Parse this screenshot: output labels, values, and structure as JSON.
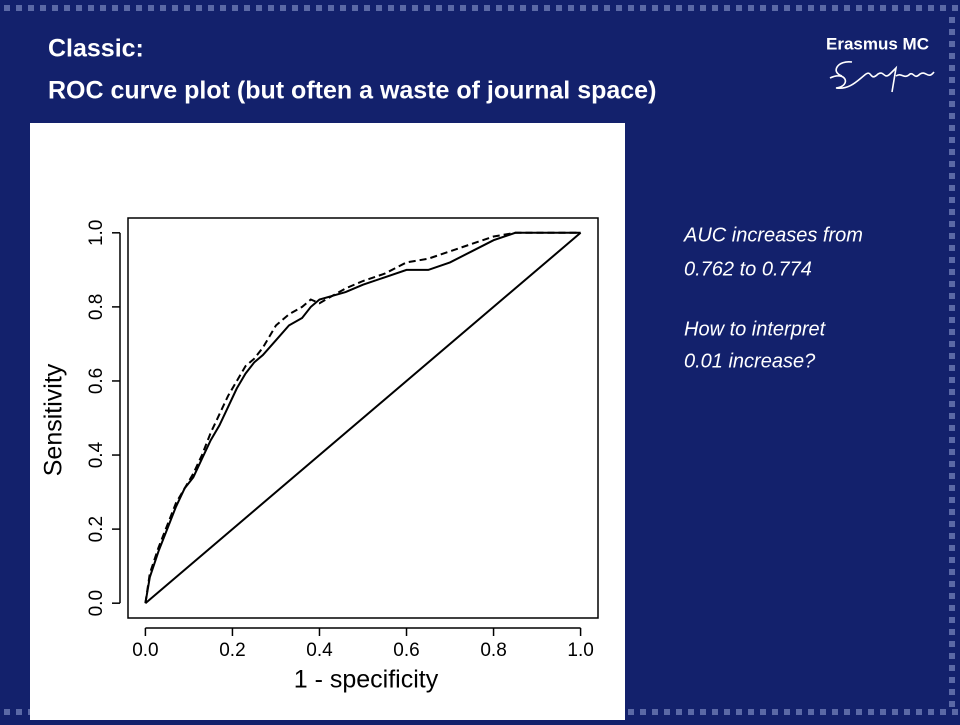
{
  "slide": {
    "title": [
      "Classic:",
      "ROC curve plot (but often a waste of journal space)"
    ],
    "logo": "Erasmus MC",
    "notes": [
      "AUC increases from",
      "0.762 to 0.774",
      "How to interpret",
      "0.01 increase?"
    ]
  },
  "chart_data": {
    "type": "line",
    "x_label": "1 - specificity",
    "y_label": "Sensitivity",
    "xlim": [
      -0.04,
      1.04
    ],
    "ylim": [
      -0.04,
      1.04
    ],
    "xticks": [
      {
        "value": 0,
        "label": "0.0"
      },
      0.2,
      0.4,
      0.6,
      0.8,
      {
        "value": 1,
        "label": "1.0"
      }
    ],
    "yticks": [
      {
        "value": 0,
        "label": "0.0"
      },
      0.2,
      0.4,
      0.6,
      0.8,
      {
        "value": 1,
        "label": "1.0"
      }
    ],
    "series": [
      {
        "color": "#000000",
        "dashed": false,
        "x": [
          0,
          0.01,
          0.03,
          0.05,
          0.07,
          0.09,
          0.11,
          0.13,
          0.15,
          0.17,
          0.19,
          0.21,
          0.23,
          0.25,
          0.27,
          0.3,
          0.33,
          0.36,
          0.38,
          0.4,
          0.43,
          0.46,
          0.5,
          0.55,
          0.6,
          0.65,
          0.7,
          0.75,
          0.8,
          0.85,
          0.9,
          1
        ],
        "y": [
          0,
          0.07,
          0.14,
          0.2,
          0.26,
          0.31,
          0.34,
          0.39,
          0.44,
          0.48,
          0.53,
          0.58,
          0.62,
          0.65,
          0.67,
          0.71,
          0.75,
          0.77,
          0.8,
          0.82,
          0.83,
          0.84,
          0.86,
          0.88,
          0.9,
          0.9,
          0.92,
          0.95,
          0.98,
          1,
          1,
          1
        ]
      },
      {
        "color": "#000000",
        "dashed": true,
        "x": [
          0,
          0.01,
          0.03,
          0.05,
          0.07,
          0.09,
          0.11,
          0.13,
          0.15,
          0.17,
          0.19,
          0.21,
          0.23,
          0.25,
          0.27,
          0.3,
          0.33,
          0.36,
          0.38,
          0.4,
          0.43,
          0.46,
          0.5,
          0.55,
          0.6,
          0.65,
          0.7,
          0.75,
          0.8,
          0.85,
          0.9,
          1
        ],
        "y": [
          0,
          0.08,
          0.15,
          0.21,
          0.27,
          0.31,
          0.35,
          0.4,
          0.46,
          0.51,
          0.56,
          0.6,
          0.64,
          0.66,
          0.69,
          0.75,
          0.78,
          0.8,
          0.82,
          0.81,
          0.83,
          0.85,
          0.87,
          0.89,
          0.92,
          0.93,
          0.95,
          0.97,
          0.99,
          1,
          1,
          1
        ]
      },
      {
        "color": "#000000",
        "dashed": false,
        "x": [
          0,
          1
        ],
        "y": [
          0,
          1
        ]
      }
    ]
  }
}
